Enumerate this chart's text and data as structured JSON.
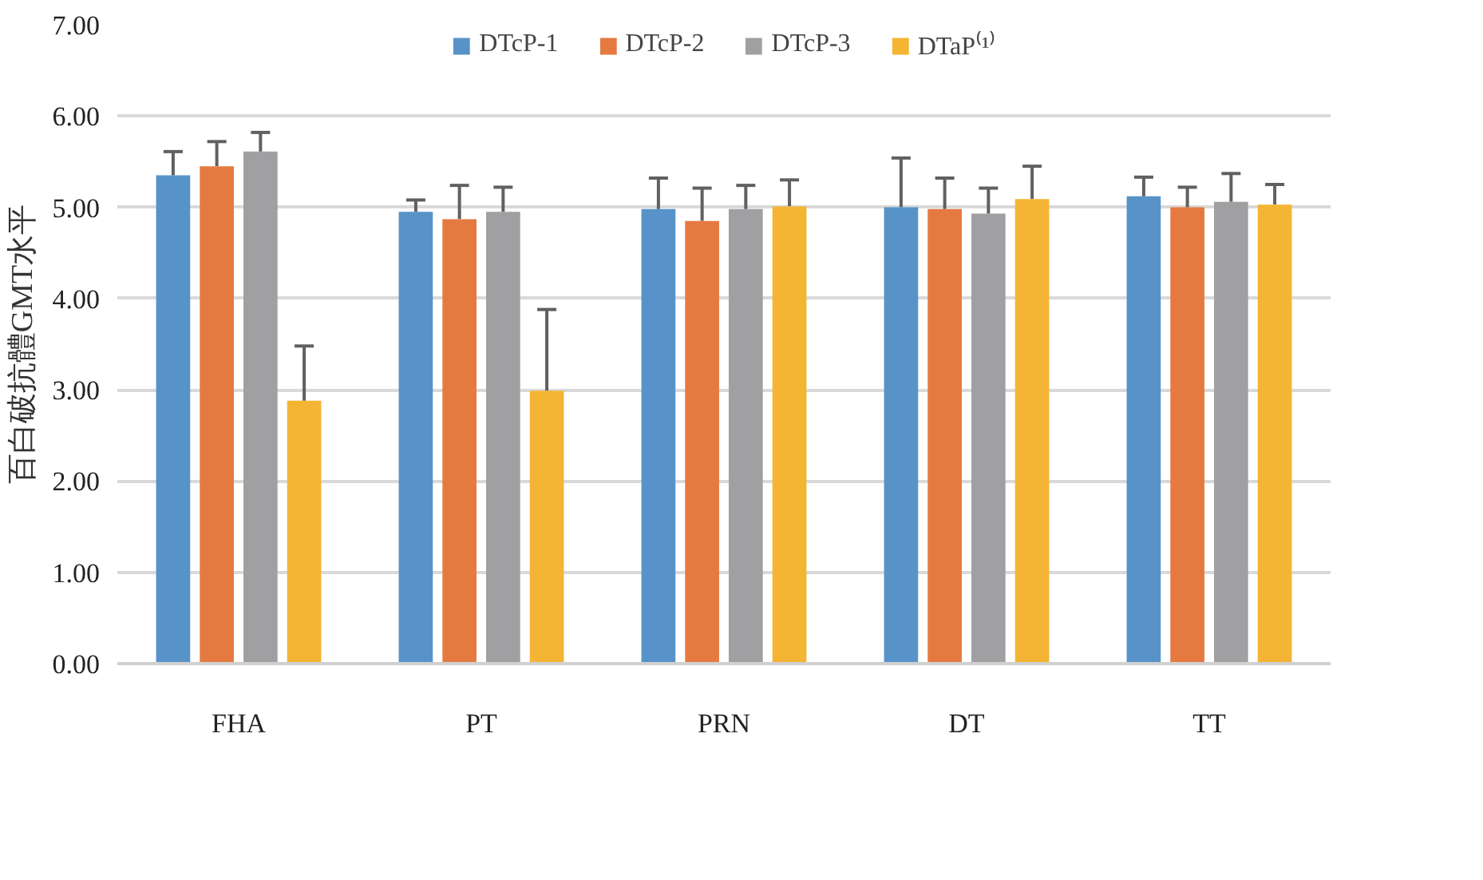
{
  "chart_data": {
    "type": "bar",
    "ylabel": "百白破抗體GMT水平",
    "categories": [
      "FHA",
      "PT",
      "PRN",
      "DT",
      "TT"
    ],
    "series": [
      {
        "name": "DTcP-1",
        "color": "#5793c9",
        "values": [
          5.35,
          4.95,
          4.98,
          5.0,
          5.12
        ],
        "errors": [
          [
            5.35,
            5.61
          ],
          [
            4.95,
            5.08
          ],
          [
            4.98,
            5.32
          ],
          [
            5.0,
            5.54
          ],
          [
            5.12,
            5.33
          ]
        ]
      },
      {
        "name": "DTcP-2",
        "color": "#e57a41",
        "values": [
          5.45,
          4.87,
          4.85,
          4.98,
          5.0
        ],
        "errors": [
          [
            5.45,
            5.72
          ],
          [
            4.87,
            5.24
          ],
          [
            4.85,
            5.21
          ],
          [
            4.98,
            5.32
          ],
          [
            5.0,
            5.22
          ]
        ]
      },
      {
        "name": "DTcP-3",
        "color": "#a0a0a3",
        "values": [
          5.61,
          4.95,
          4.98,
          4.93,
          5.06
        ],
        "errors": [
          [
            5.61,
            5.82
          ],
          [
            4.95,
            5.22
          ],
          [
            4.98,
            5.24
          ],
          [
            4.93,
            5.21
          ],
          [
            5.06,
            5.37
          ]
        ]
      },
      {
        "name": "DTaP⁽¹⁾",
        "color": "#f4b434",
        "values": [
          2.88,
          2.99,
          5.01,
          5.09,
          5.03
        ],
        "errors": [
          [
            2.88,
            3.48
          ],
          [
            2.99,
            3.88
          ],
          [
            5.01,
            5.3
          ],
          [
            5.09,
            5.45
          ],
          [
            5.03,
            5.25
          ]
        ]
      }
    ],
    "ylim": [
      0,
      7
    ],
    "yticks": [
      {
        "value": 0,
        "label": "0.00"
      },
      {
        "value": 1,
        "label": "1.00"
      },
      {
        "value": 2,
        "label": "2.00"
      },
      {
        "value": 3,
        "label": "3.00"
      },
      {
        "value": 4,
        "label": "4.00"
      },
      {
        "value": 5,
        "label": "5.00"
      },
      {
        "value": 6,
        "label": "6.00"
      },
      {
        "value": 7,
        "label": "7.00"
      }
    ],
    "grid": "y",
    "legend": "top"
  }
}
